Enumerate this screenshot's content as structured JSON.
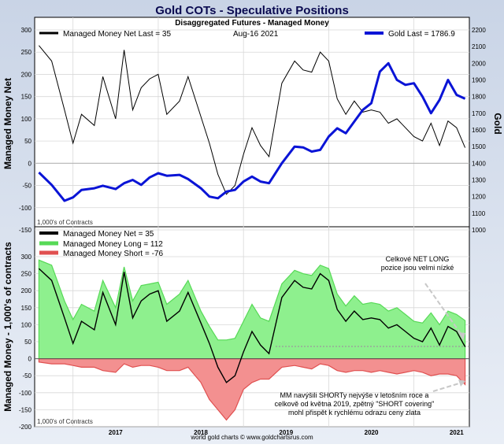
{
  "title": "Gold COTs - Speculative Positions",
  "subtitle": "Disaggregated Futures - Managed Money",
  "date": "Aug-16  2021",
  "footer": "world gold charts © www.goldchartsrus.com",
  "colors": {
    "net": "#000000",
    "gold": "#0a14d6",
    "long_fill": "#8ef08e",
    "long_line": "#56d956",
    "short_fill": "#f39090",
    "short_line": "#e05050"
  },
  "chart_data": [
    {
      "type": "line",
      "title": "Gold COTs - Speculative Positions",
      "subtitle": "Disaggregated Futures - Managed Money",
      "ylabel": "Managed Money Net",
      "y2label": "Gold",
      "units_note": "1,000's of Contracts",
      "legend": [
        "Managed Money Net  Last = 35",
        "Gold Last = 1786.9"
      ],
      "ylim": [
        -150,
        300
      ],
      "y2lim": [
        1000,
        2200
      ],
      "yticks": [
        "300",
        "250",
        "200",
        "150",
        "100",
        "50",
        "0",
        "-50",
        "-100",
        "-150"
      ],
      "y2ticks": [
        "2200",
        "2100",
        "2000",
        "1900",
        "1800",
        "1700",
        "1600",
        "1500",
        "1400",
        "1300",
        "1200",
        "1100",
        "1000"
      ],
      "xticks": [
        "2017",
        "2018",
        "2019",
        "2020",
        "2021"
      ],
      "x": [
        2016.6,
        2016.75,
        2016.9,
        2017.0,
        2017.1,
        2017.25,
        2017.35,
        2017.5,
        2017.6,
        2017.7,
        2017.8,
        2017.9,
        2018.0,
        2018.1,
        2018.25,
        2018.35,
        2018.5,
        2018.6,
        2018.7,
        2018.8,
        2018.9,
        2019.0,
        2019.1,
        2019.2,
        2019.3,
        2019.45,
        2019.6,
        2019.7,
        2019.8,
        2019.9,
        2020.0,
        2020.1,
        2020.2,
        2020.3,
        2020.4,
        2020.5,
        2020.6,
        2020.7,
        2020.8,
        2020.9,
        2021.0,
        2021.1,
        2021.2,
        2021.3,
        2021.4,
        2021.5,
        2021.6
      ],
      "series": [
        {
          "name": "Managed Money Net",
          "axis": "left",
          "values": [
            265,
            230,
            120,
            45,
            110,
            85,
            195,
            100,
            255,
            120,
            170,
            190,
            200,
            110,
            140,
            195,
            105,
            45,
            -25,
            -70,
            -50,
            20,
            80,
            40,
            15,
            180,
            230,
            210,
            205,
            250,
            230,
            145,
            110,
            140,
            115,
            120,
            115,
            90,
            100,
            80,
            60,
            50,
            90,
            40,
            95,
            80,
            35
          ]
        },
        {
          "name": "Gold",
          "axis": "right",
          "values": [
            1345,
            1270,
            1175,
            1195,
            1240,
            1250,
            1265,
            1245,
            1280,
            1300,
            1270,
            1315,
            1340,
            1325,
            1330,
            1305,
            1250,
            1200,
            1190,
            1230,
            1240,
            1290,
            1320,
            1290,
            1280,
            1400,
            1500,
            1495,
            1470,
            1480,
            1560,
            1610,
            1580,
            1650,
            1720,
            1760,
            1950,
            2000,
            1900,
            1870,
            1880,
            1800,
            1700,
            1780,
            1900,
            1810,
            1787
          ]
        }
      ],
      "last_values": {
        "managed_money_net": 35,
        "gold": 1786.9
      }
    },
    {
      "type": "area",
      "ylabel": "Managed Money - 1,000's of contracts",
      "units_note": "1,000's of Contracts",
      "legend": [
        "Managed Money Net  = 35",
        "Managed Money Long  = 112",
        "Managed Money Short  = -76"
      ],
      "ylim": [
        -200,
        300
      ],
      "yticks": [
        "300",
        "250",
        "200",
        "150",
        "100",
        "50",
        "0",
        "-50",
        "-100",
        "-150",
        "-200"
      ],
      "xticks": [
        "2017",
        "2018",
        "2019",
        "2020",
        "2021"
      ],
      "x": [
        2016.6,
        2016.75,
        2016.9,
        2017.0,
        2017.1,
        2017.25,
        2017.35,
        2017.5,
        2017.6,
        2017.7,
        2017.8,
        2017.9,
        2018.0,
        2018.1,
        2018.25,
        2018.35,
        2018.5,
        2018.6,
        2018.7,
        2018.8,
        2018.9,
        2019.0,
        2019.1,
        2019.2,
        2019.3,
        2019.45,
        2019.6,
        2019.7,
        2019.8,
        2019.9,
        2020.0,
        2020.1,
        2020.2,
        2020.3,
        2020.4,
        2020.5,
        2020.6,
        2020.7,
        2020.8,
        2020.9,
        2021.0,
        2021.1,
        2021.2,
        2021.3,
        2021.4,
        2021.5,
        2021.6
      ],
      "series": [
        {
          "name": "Managed Money Long",
          "values": [
            290,
            275,
            170,
            115,
            160,
            140,
            230,
            150,
            270,
            170,
            215,
            220,
            225,
            160,
            190,
            230,
            140,
            95,
            55,
            55,
            60,
            110,
            160,
            120,
            110,
            220,
            260,
            250,
            245,
            275,
            265,
            190,
            155,
            185,
            160,
            165,
            160,
            140,
            150,
            130,
            110,
            105,
            135,
            100,
            140,
            130,
            112
          ]
        },
        {
          "name": "Managed Money Short",
          "values": [
            -10,
            -15,
            -15,
            -20,
            -25,
            -25,
            -35,
            -40,
            -15,
            -25,
            -20,
            -20,
            -25,
            -35,
            -35,
            -25,
            -70,
            -120,
            -150,
            -180,
            -150,
            -90,
            -70,
            -60,
            -60,
            -25,
            -20,
            -25,
            -30,
            -15,
            -20,
            -35,
            -40,
            -35,
            -35,
            -40,
            -35,
            -40,
            -45,
            -40,
            -35,
            -40,
            -50,
            -45,
            -45,
            -50,
            -76
          ]
        },
        {
          "name": "Managed Money Net",
          "values": [
            265,
            230,
            120,
            45,
            110,
            85,
            195,
            100,
            255,
            120,
            170,
            190,
            200,
            110,
            140,
            195,
            105,
            45,
            -25,
            -70,
            -50,
            20,
            80,
            40,
            15,
            180,
            230,
            210,
            205,
            250,
            230,
            145,
            110,
            140,
            115,
            120,
            115,
            90,
            100,
            80,
            60,
            50,
            90,
            40,
            95,
            80,
            35
          ]
        }
      ],
      "last_values": {
        "net": 35,
        "long": 112,
        "short": -76
      },
      "annotations": [
        "Celkové NET LONG\npozice jsou velmi nízké",
        "MM navýšili SHORTy nejvýše v letošním roce a\ncelkově od května 2019, zpětný \"SHORT covering\"\nmohl přispět k rychlému odrazu ceny zlata"
      ]
    }
  ]
}
